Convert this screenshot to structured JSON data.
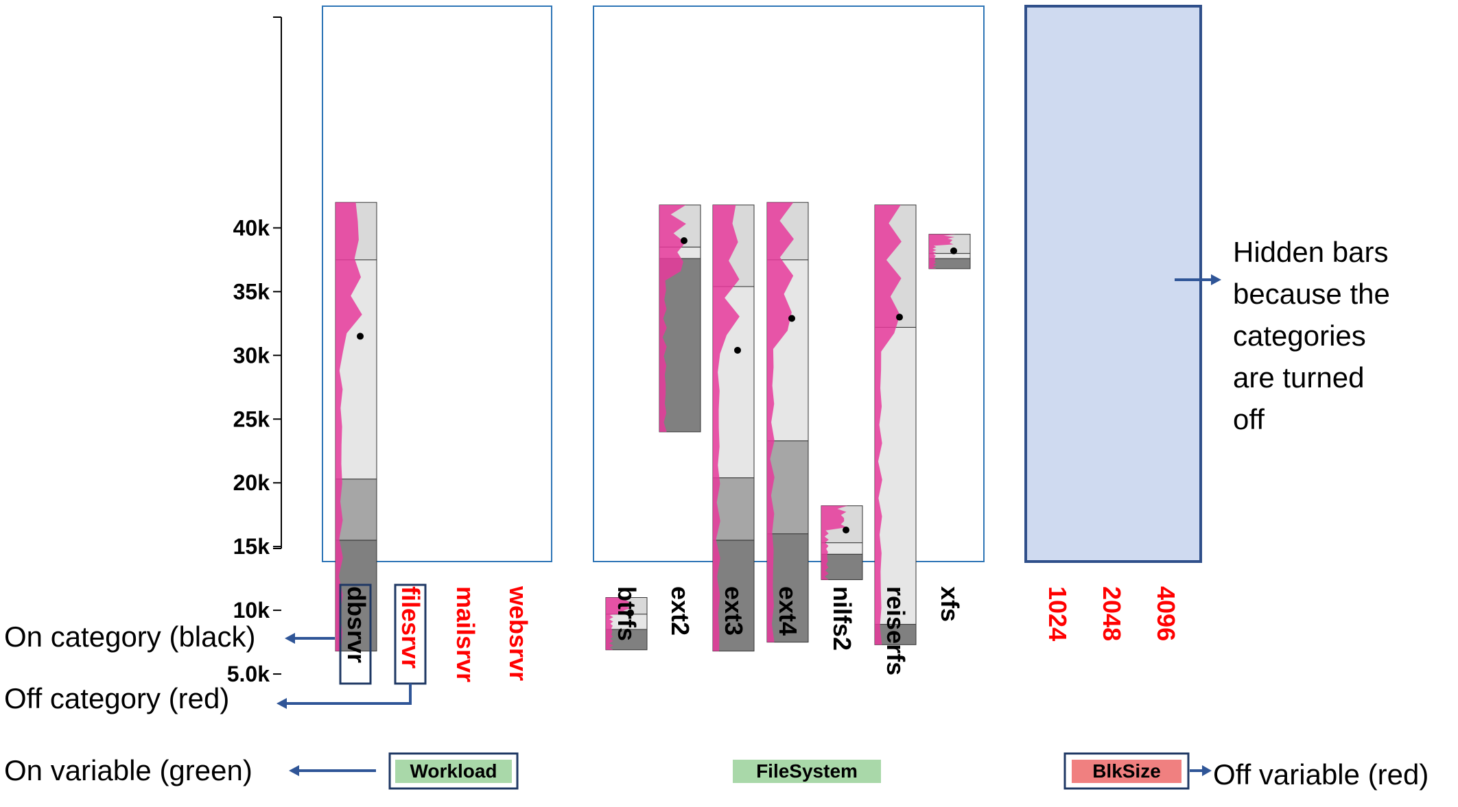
{
  "chart_data": {
    "type": "bar",
    "y_axis": {
      "range": [
        0,
        42000
      ],
      "ticks": [
        {
          "value": 5000,
          "label": "5.0k"
        },
        {
          "value": 10000,
          "label": "10k"
        },
        {
          "value": 15000,
          "label": "15k"
        },
        {
          "value": 20000,
          "label": "20k"
        },
        {
          "value": 25000,
          "label": "25k"
        },
        {
          "value": 30000,
          "label": "30k"
        },
        {
          "value": 35000,
          "label": "35k"
        },
        {
          "value": 40000,
          "label": "40k"
        }
      ]
    },
    "variables": [
      {
        "name": "Workload",
        "state": "on",
        "categories": [
          {
            "label": "dbsrvr",
            "state": "on",
            "boxed": true,
            "bar": {
              "min": 6800,
              "max": 42000,
              "segments": [
                15500,
                20300,
                37500
              ],
              "mean": 31500
            }
          },
          {
            "label": "filesrvr",
            "state": "off",
            "boxed": true
          },
          {
            "label": "mailsrvr",
            "state": "off"
          },
          {
            "label": "websrvr",
            "state": "off"
          }
        ]
      },
      {
        "name": "FileSystem",
        "state": "on",
        "categories": [
          {
            "label": "btrfs",
            "state": "on",
            "bar": {
              "min": 6900,
              "max": 11000,
              "segments": [
                8500,
                9700
              ],
              "mean": 9800
            }
          },
          {
            "label": "ext2",
            "state": "on",
            "bar": {
              "min": 24000,
              "max": 41800,
              "segments": [
                37600,
                38500
              ],
              "mean": 39000
            }
          },
          {
            "label": "ext3",
            "state": "on",
            "bar": {
              "min": 6800,
              "max": 41800,
              "segments": [
                15500,
                20400,
                35400
              ],
              "mean": 30400
            }
          },
          {
            "label": "ext4",
            "state": "on",
            "bar": {
              "min": 7500,
              "max": 42000,
              "segments": [
                16000,
                23300,
                37500
              ],
              "mean": 32900
            }
          },
          {
            "label": "nilfs2",
            "state": "on",
            "bar": {
              "min": 12400,
              "max": 18200,
              "segments": [
                14400,
                15300
              ],
              "mean": 16300
            }
          },
          {
            "label": "reiserfs",
            "state": "on",
            "bar": {
              "min": 7300,
              "max": 41800,
              "segments": [
                8900,
                32200
              ],
              "mean": 33000
            }
          },
          {
            "label": "xfs",
            "state": "on",
            "bar": {
              "min": 36800,
              "max": 39500,
              "segments": [
                37600,
                38000
              ],
              "mean": 38200
            }
          }
        ]
      },
      {
        "name": "BlkSize",
        "state": "off",
        "categories": [
          {
            "label": "1024",
            "state": "off"
          },
          {
            "label": "2048",
            "state": "off"
          },
          {
            "label": "4096",
            "state": "off"
          }
        ]
      }
    ],
    "annotations": [
      "Hidden bars because the categories are turned off",
      "On category (black)",
      "Off category (red)",
      "On variable (green)",
      "Off variable (red)"
    ]
  },
  "annotations": {
    "hidden_bars_lines": [
      "Hidden bars",
      "because the",
      "categories",
      "are turned",
      "off"
    ],
    "on_category": "On category (black)",
    "off_category": "Off category (red)",
    "on_variable": "On variable (green)",
    "off_variable": "Off variable (red)"
  },
  "colors": {
    "on_text": "#000000",
    "off_text": "#ff0000",
    "panel_border": "#2e75b6",
    "hidden_panel_fill": "#cfdaf0",
    "hidden_panel_border": "#2f4f8a",
    "on_variable_bg": "#a9d8a9",
    "off_variable_bg": "#f08080",
    "seg_top": "#d9d9d9",
    "seg_light": "#e6e6e6",
    "seg_mid": "#a6a6a6",
    "seg_dark": "#808080",
    "density": "#e6399b",
    "arrow": "#2f5597"
  }
}
